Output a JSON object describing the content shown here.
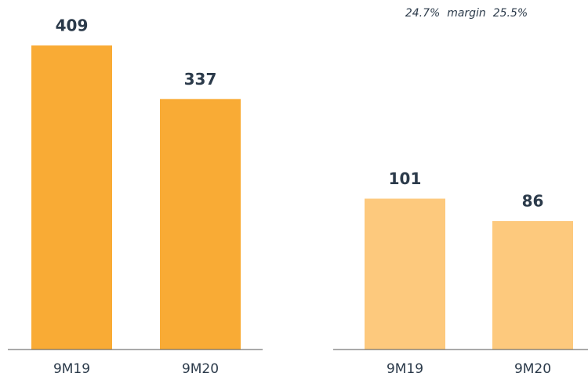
{
  "chart_data": [
    {
      "type": "bar",
      "categories": [
        "9M19",
        "9M20"
      ],
      "values": [
        409,
        337
      ],
      "color": "#f9ab35",
      "ylim": [
        0,
        428
      ]
    },
    {
      "type": "bar",
      "categories": [
        "9M19",
        "9M20"
      ],
      "values": [
        101,
        86
      ],
      "color": "#fdc97d",
      "ylim": [
        0,
        213
      ],
      "annotation": "24.7%  margin  25.5%"
    }
  ]
}
